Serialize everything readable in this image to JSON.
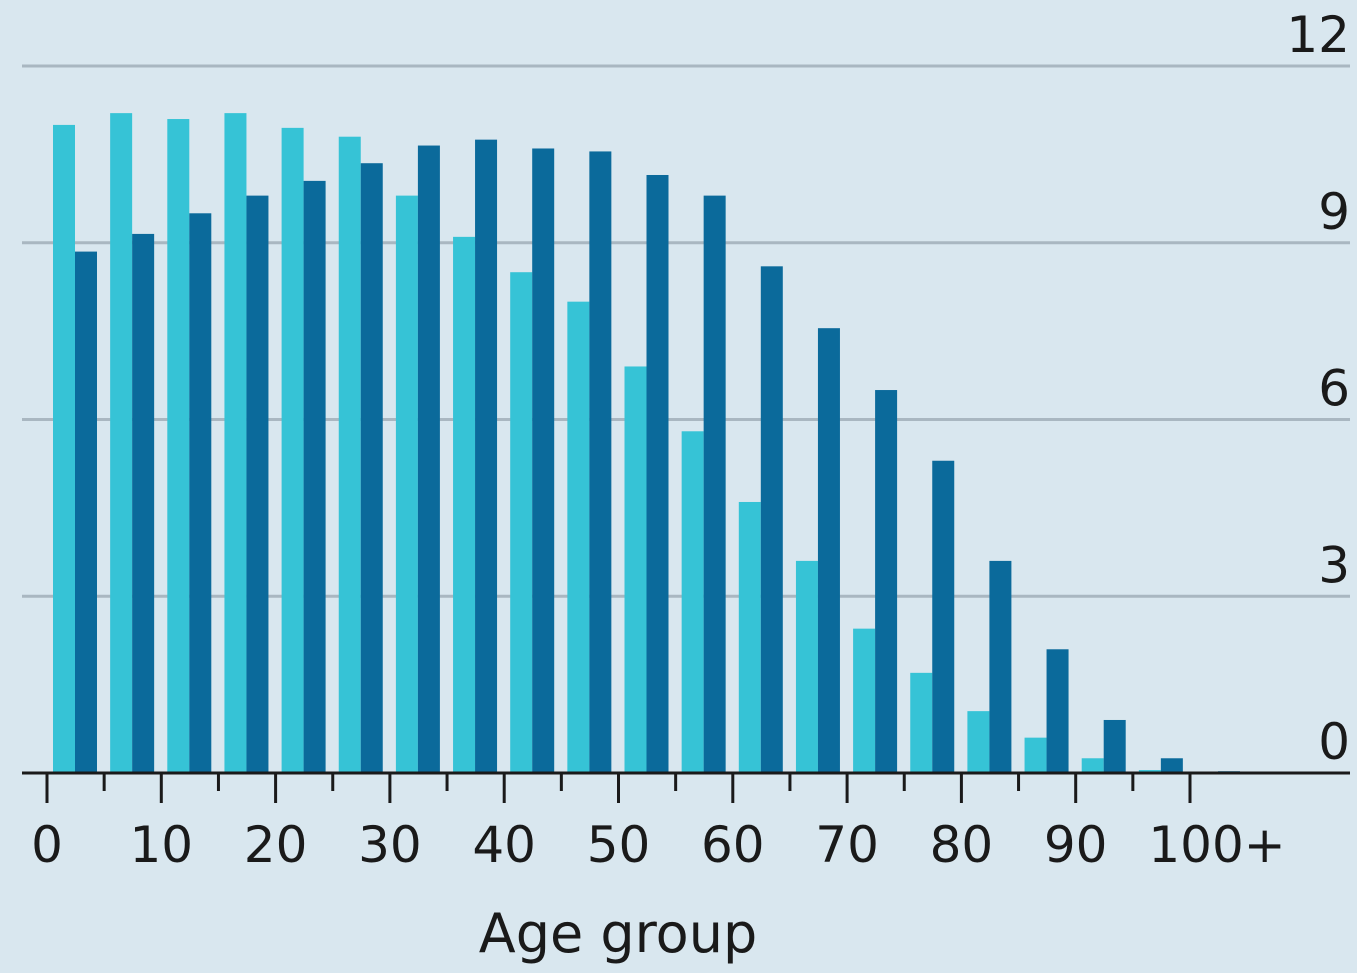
{
  "chart_data": {
    "type": "bar",
    "xlabel": "Age group",
    "ylabel": "",
    "ylim": [
      0,
      12
    ],
    "yticks": [
      0,
      3,
      6,
      9,
      12
    ],
    "y_axis_side": "right",
    "grid": true,
    "legend": "none",
    "x_tick_labels": [
      "0",
      "10",
      "20",
      "30",
      "40",
      "50",
      "60",
      "70",
      "80",
      "90",
      "100+"
    ],
    "categories": [
      "0-4",
      "5-9",
      "10-14",
      "15-19",
      "20-24",
      "25-29",
      "30-34",
      "35-39",
      "40-44",
      "45-49",
      "50-54",
      "55-59",
      "60-64",
      "65-69",
      "70-74",
      "75-79",
      "80-84",
      "85-89",
      "90-94",
      "95-99",
      "100+"
    ],
    "series": [
      {
        "color": "#36c3d6",
        "values": [
          11.0,
          11.2,
          11.1,
          11.2,
          10.95,
          10.8,
          9.8,
          9.1,
          8.5,
          8.0,
          6.9,
          5.8,
          4.6,
          3.6,
          2.45,
          1.7,
          1.05,
          0.6,
          0.25,
          0.05,
          0.0
        ]
      },
      {
        "color": "#0b6a9b",
        "values": [
          8.85,
          9.15,
          9.5,
          9.8,
          10.05,
          10.35,
          10.65,
          10.75,
          10.6,
          10.55,
          10.15,
          9.8,
          8.6,
          7.55,
          6.5,
          5.3,
          3.6,
          2.1,
          0.9,
          0.25,
          0.03
        ]
      }
    ]
  },
  "colors": {
    "background": "#d9e7ef",
    "gridline": "#a9b7c1",
    "axis": "#1a1a1a"
  }
}
